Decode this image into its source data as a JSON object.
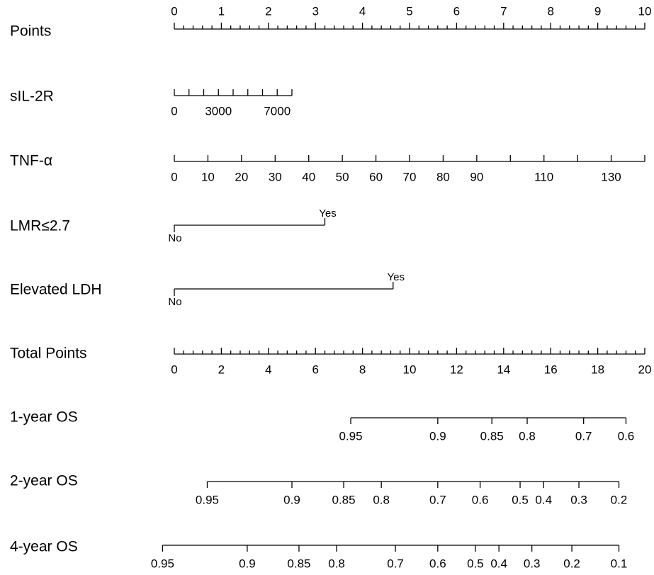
{
  "chart_data": {
    "type": "nomogram",
    "rows": [
      {
        "id": "points",
        "label": "Points",
        "kind": "continuous",
        "labels_above": true,
        "domain": [
          0,
          10
        ],
        "points_range": [
          0,
          10
        ],
        "major": [
          0,
          1,
          2,
          3,
          4,
          5,
          6,
          7,
          8,
          9,
          10
        ],
        "minor": [
          0.2,
          0.4,
          0.6,
          0.8,
          1.2,
          1.4,
          1.6,
          1.8,
          2.2,
          2.4,
          2.6,
          2.8,
          3.2,
          3.4,
          3.6,
          3.8,
          4.2,
          4.4,
          4.6,
          4.8,
          5.2,
          5.4,
          5.6,
          5.8,
          6.2,
          6.4,
          6.6,
          6.8,
          7.2,
          7.4,
          7.6,
          7.8,
          8.2,
          8.4,
          8.6,
          8.8,
          9.2,
          9.4,
          9.6,
          9.8
        ],
        "tick_labels": [
          "0",
          "1",
          "2",
          "3",
          "4",
          "5",
          "6",
          "7",
          "8",
          "9",
          "10"
        ]
      },
      {
        "id": "sil2r",
        "label": "sIL-2R",
        "kind": "continuous",
        "domain": [
          0,
          8000
        ],
        "points_range": [
          0,
          2.5
        ],
        "major": [
          0,
          1000,
          2000,
          3000,
          4000,
          5000,
          6000,
          7000,
          8000
        ],
        "labeled": [
          0,
          3000,
          7000
        ],
        "tick_labels": [
          "0",
          "3000",
          "7000"
        ]
      },
      {
        "id": "tnfa",
        "label": "TNF-α",
        "kind": "continuous",
        "domain": [
          0,
          140
        ],
        "points_range": [
          0,
          10
        ],
        "major": [
          0,
          10,
          20,
          30,
          40,
          50,
          60,
          70,
          80,
          90,
          100,
          110,
          120,
          130,
          140
        ],
        "labeled": [
          0,
          10,
          20,
          30,
          40,
          50,
          60,
          70,
          80,
          90,
          110,
          130
        ],
        "tick_labels": [
          "0",
          "10",
          "20",
          "30",
          "40",
          "50",
          "60",
          "70",
          "80",
          "90",
          "110",
          "130"
        ]
      },
      {
        "id": "lmr",
        "label": "LMR≤2.7",
        "kind": "binary",
        "levels": [
          {
            "name": "No",
            "points": 0
          },
          {
            "name": "Yes",
            "points": 3.2
          }
        ]
      },
      {
        "id": "ldh",
        "label": "Elevated LDH",
        "kind": "binary",
        "levels": [
          {
            "name": "No",
            "points": 0
          },
          {
            "name": "Yes",
            "points": 4.65
          }
        ]
      },
      {
        "id": "total",
        "label": "Total Points",
        "kind": "continuous",
        "domain": [
          0,
          20
        ],
        "points_range": [
          0,
          20
        ],
        "scale": "total",
        "major": [
          0,
          2,
          4,
          6,
          8,
          10,
          12,
          14,
          16,
          18,
          20
        ],
        "minor": [
          0.4,
          0.8,
          1.2,
          1.6,
          2.4,
          2.8,
          3.2,
          3.6,
          4.4,
          4.8,
          5.2,
          5.6,
          6.4,
          6.8,
          7.2,
          7.6,
          8.4,
          8.8,
          9.2,
          9.6,
          10.4,
          10.8,
          11.2,
          11.6,
          12.4,
          12.8,
          13.2,
          13.6,
          14.4,
          14.8,
          15.2,
          15.6,
          16.4,
          16.8,
          17.2,
          17.6,
          18.4,
          18.8,
          19.2,
          19.6
        ],
        "tick_labels": [
          "0",
          "2",
          "4",
          "6",
          "8",
          "10",
          "12",
          "14",
          "16",
          "18",
          "20"
        ]
      },
      {
        "id": "os1",
        "label": "1-year OS",
        "kind": "probability",
        "ticks": [
          {
            "label": "0.95",
            "total": 7.5
          },
          {
            "label": "0.9",
            "total": 11.2
          },
          {
            "label": "0.85",
            "total": 13.5
          },
          {
            "label": "0.8",
            "total": 15.0
          },
          {
            "label": "0.7",
            "total": 17.4
          },
          {
            "label": "0.6",
            "total": 19.2
          }
        ]
      },
      {
        "id": "os2",
        "label": "2-year OS",
        "kind": "probability",
        "ticks": [
          {
            "label": "0.95",
            "total": 1.4
          },
          {
            "label": "0.9",
            "total": 5.0
          },
          {
            "label": "0.85",
            "total": 7.2
          },
          {
            "label": "0.8",
            "total": 8.8
          },
          {
            "label": "0.7",
            "total": 11.2
          },
          {
            "label": "0.6",
            "total": 13.0
          },
          {
            "label": "0.5",
            "total": 14.7
          },
          {
            "label": "0.4",
            "total": 15.7
          },
          {
            "label": "0.3",
            "total": 17.2
          },
          {
            "label": "0.2",
            "total": 18.9
          }
        ]
      },
      {
        "id": "os4",
        "label": "4-year OS",
        "kind": "probability",
        "ticks": [
          {
            "label": "0.95",
            "total": -0.5
          },
          {
            "label": "0.9",
            "total": 3.1
          },
          {
            "label": "0.85",
            "total": 5.3
          },
          {
            "label": "0.8",
            "total": 6.9
          },
          {
            "label": "0.7",
            "total": 9.4
          },
          {
            "label": "0.6",
            "total": 11.2
          },
          {
            "label": "0.5",
            "total": 12.8
          },
          {
            "label": "0.4",
            "total": 13.8
          },
          {
            "label": "0.3",
            "total": 15.2
          },
          {
            "label": "0.2",
            "total": 16.9
          },
          {
            "label": "0.1",
            "total": 18.9
          }
        ]
      }
    ]
  }
}
